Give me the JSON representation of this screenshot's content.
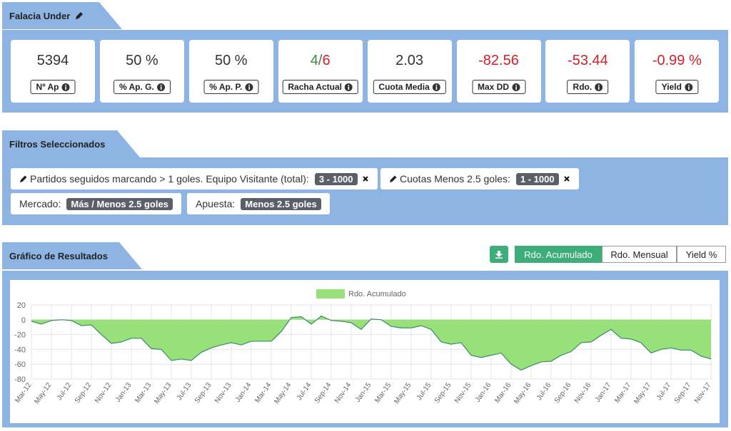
{
  "header": {
    "title": "Falacia Under"
  },
  "stats": [
    {
      "value": "5394",
      "label": "Nº Ap"
    },
    {
      "value": "50 %",
      "label": "% Ap. G."
    },
    {
      "value": "50 %",
      "label": "% Ap. P."
    },
    {
      "value_parts": [
        {
          "text": "4",
          "tone": "positive"
        },
        {
          "text": "/",
          "tone": "neutral"
        },
        {
          "text": "6",
          "tone": "negative"
        }
      ],
      "label": "Racha Actual"
    },
    {
      "value": "2.03",
      "label": "Cuota Media"
    },
    {
      "value": "-82.56",
      "label": "Max DD",
      "tone": "negative"
    },
    {
      "value": "-53.44",
      "label": "Rdo.",
      "tone": "negative"
    },
    {
      "value": "-0.99 %",
      "label": "Yield",
      "tone": "negative"
    }
  ],
  "filters_panel": {
    "title": "Filtros Seleccionados",
    "filters": [
      {
        "text": "Partidos seguidos marcando > 1 goles. Equipo Visitante (total):",
        "badge": "3 - 1000",
        "editable": true,
        "removable": true
      },
      {
        "text": "Cuotas Menos 2.5 goles:",
        "badge": "1 - 1000",
        "editable": true,
        "removable": true
      },
      {
        "text": "Mercado:",
        "badge": "Más / Menos 2.5 goles",
        "editable": false,
        "removable": false
      },
      {
        "text": "Apuesta:",
        "badge": "Menos 2.5 goles",
        "editable": false,
        "removable": false
      }
    ]
  },
  "chart_panel": {
    "title": "Gráfico de Resultados",
    "buttons": [
      "Rdo. Acumulado",
      "Rdo. Mensual",
      "Yield %"
    ],
    "active_button": 0
  },
  "chart_data": {
    "type": "area",
    "categories": [
      "Mar-12",
      null,
      "May-12",
      null,
      "Jul-12",
      null,
      "Sep-12",
      null,
      "Nov-12",
      null,
      "Jan-13",
      null,
      "Mar-13",
      null,
      "May-13",
      null,
      "Jul-13",
      null,
      "Sep-13",
      null,
      "Nov-13",
      null,
      "Jan-14",
      null,
      "Mar-14",
      null,
      "May-14",
      null,
      "Jul-14",
      null,
      "Sep-14",
      null,
      "Nov-14",
      null,
      "Jan-15",
      null,
      "Mar-15",
      null,
      "May-15",
      null,
      "Jul-15",
      null,
      "Sep-15",
      null,
      "Nov-15",
      null,
      "Jan-16",
      null,
      "Mar-16",
      null,
      "May-16",
      null,
      "Jul-16",
      null,
      "Sep-16",
      null,
      "Nov-16",
      null,
      "Jan-17",
      null,
      "Mar-17",
      null,
      "May-17",
      null,
      "Jul-17",
      null,
      "Sep-17",
      null,
      "Nov-17"
    ],
    "series": [
      {
        "name": "Rdo. Acumulado",
        "color": "#98e07a",
        "line_color": "#3a8a6a",
        "values": [
          -2,
          -6,
          -1,
          0,
          -1,
          -8,
          -7,
          -20,
          -32,
          -30,
          -25,
          -25,
          -39,
          -40,
          -55,
          -53,
          -55,
          -44,
          -38,
          -34,
          -31,
          -34,
          -29,
          -29,
          -29,
          -16,
          3,
          4,
          -6,
          5,
          -1,
          -2,
          -4,
          -13,
          1,
          0,
          -9,
          -11,
          -11,
          -8,
          -13,
          -30,
          -33,
          -31,
          -48,
          -51,
          -48,
          -45,
          -60,
          -68,
          -62,
          -57,
          -56,
          -48,
          -43,
          -31,
          -30,
          -21,
          -13,
          -25,
          -26,
          -31,
          -45,
          -40,
          -38,
          -41,
          -41,
          -49,
          -53
        ]
      }
    ],
    "ylim": [
      -80,
      20
    ],
    "yticks": [
      -80,
      -60,
      -40,
      -20,
      0,
      20
    ],
    "grid": true,
    "legend": "top"
  }
}
